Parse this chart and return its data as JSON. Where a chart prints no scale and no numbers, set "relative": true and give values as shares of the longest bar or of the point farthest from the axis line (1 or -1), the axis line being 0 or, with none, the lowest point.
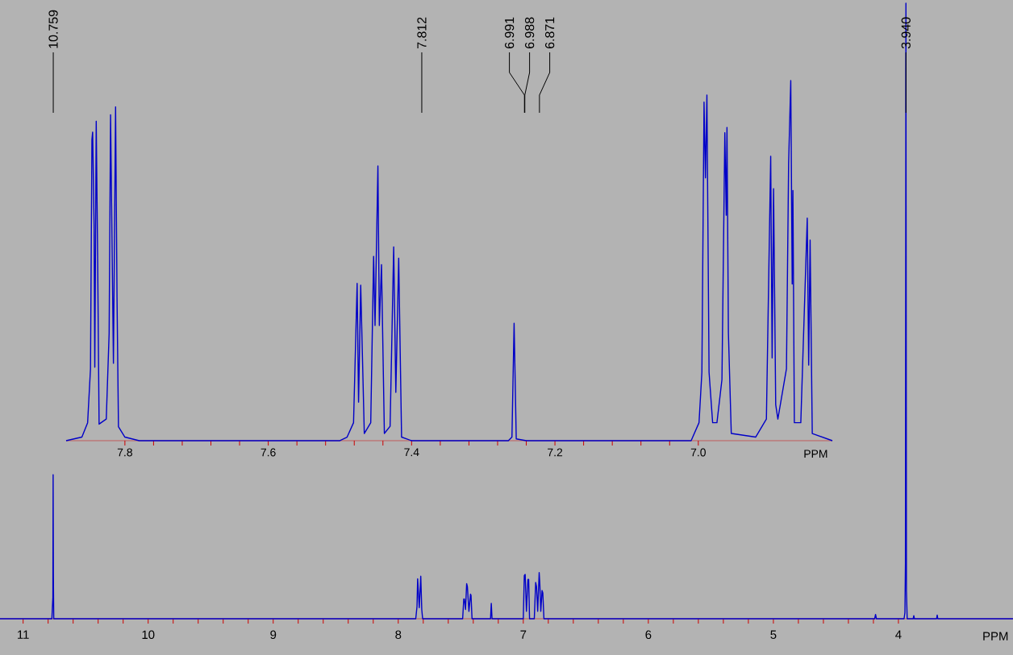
{
  "chart_data": [
    {
      "type": "line",
      "relative": true,
      "xlabel": "PPM",
      "xlim": [
        11.185,
        3.084
      ],
      "xticks": [
        11,
        10,
        9,
        8,
        7,
        6,
        5,
        4
      ],
      "x": [
        11.185,
        10.77,
        10.762,
        10.76,
        10.758,
        10.755,
        7.86,
        7.85,
        7.845,
        7.832,
        7.82,
        7.812,
        7.805,
        7.485,
        7.476,
        7.471,
        7.462,
        7.453,
        7.447,
        7.435,
        7.422,
        7.418,
        7.41,
        7.262,
        7.256,
        7.25,
        7.0,
        6.992,
        6.985,
        6.975,
        6.963,
        6.957,
        6.95,
        6.912,
        6.901,
        6.894,
        6.885,
        6.873,
        6.868,
        6.86,
        6.85,
        6.844,
        6.835,
        4.19,
        4.183,
        4.176,
        3.955,
        3.948,
        3.944,
        3.94,
        3.936,
        3.93,
        3.882,
        3.877,
        3.872,
        3.695,
        3.69,
        3.685,
        3.084
      ],
      "series": [
        {
          "color": "#0000c8",
          "values": [
            0,
            0,
            0.035,
            0.234,
            0.07,
            0,
            0,
            0.02,
            0.065,
            0.018,
            0.069,
            0.015,
            0,
            0,
            0.032,
            0.032,
            0.015,
            0.057,
            0.052,
            0.012,
            0.04,
            0.038,
            0,
            0,
            0.025,
            0,
            0,
            0.07,
            0.072,
            0.012,
            0.064,
            0.064,
            0,
            0,
            0.059,
            0.052,
            0.012,
            0.075,
            0.058,
            0.012,
            0.046,
            0.042,
            0,
            0,
            0.007,
            0,
            0,
            0.01,
            0.09,
            1.0,
            0.045,
            0,
            0,
            0.005,
            0,
            0,
            0.006,
            0,
            0
          ]
        }
      ],
      "annotations": [
        {
          "text": "10.759",
          "x": 10.759
        },
        {
          "text": "7.812",
          "x": 7.812
        },
        {
          "text": "6.991",
          "x": 6.991
        },
        {
          "text": "6.988",
          "x": 6.988
        },
        {
          "text": "6.871",
          "x": 6.871
        },
        {
          "text": "3.940",
          "x": 3.94
        }
      ]
    },
    {
      "type": "line",
      "relative": true,
      "xlabel": "PPM",
      "xlim": [
        7.882,
        6.813
      ],
      "xticks": [
        7.8,
        7.6,
        7.4,
        7.2,
        {
          "value": 7,
          "label": "7.0"
        }
      ],
      "x": [
        7.882,
        7.86,
        7.852,
        7.848,
        7.846,
        7.845,
        7.843,
        7.842,
        7.84,
        7.838,
        7.836,
        7.826,
        7.822,
        7.82,
        7.816,
        7.813,
        7.811,
        7.809,
        7.8,
        7.78,
        7.5,
        7.49,
        7.481,
        7.476,
        7.474,
        7.471,
        7.466,
        7.457,
        7.453,
        7.451,
        7.447,
        7.445,
        7.442,
        7.438,
        7.43,
        7.425,
        7.422,
        7.418,
        7.414,
        7.4,
        7.265,
        7.26,
        7.257,
        7.254,
        7.24,
        7.01,
        6.999,
        6.995,
        6.992,
        6.99,
        6.988,
        6.985,
        6.98,
        6.974,
        6.967,
        6.963,
        6.961,
        6.96,
        6.958,
        6.954,
        6.92,
        6.905,
        6.899,
        6.897,
        6.895,
        6.892,
        6.889,
        6.877,
        6.874,
        6.871,
        6.869,
        6.868,
        6.866,
        6.857,
        6.848,
        6.846,
        6.844,
        6.841,
        6.813
      ],
      "series": [
        {
          "color": "#0000c8",
          "values": [
            0,
            0.01,
            0.05,
            0.2,
            0.836,
            0.857,
            0.6,
            0.204,
            0.887,
            0.5,
            0.046,
            0.06,
            0.298,
            0.905,
            0.215,
            0.927,
            0.4,
            0.039,
            0.01,
            0,
            0,
            0.01,
            0.05,
            0.437,
            0.107,
            0.432,
            0.02,
            0.05,
            0.512,
            0.32,
            0.763,
            0.32,
            0.489,
            0.02,
            0.04,
            0.538,
            0.134,
            0.507,
            0.01,
            0,
            0,
            0.01,
            0.326,
            0.005,
            0,
            0,
            0.05,
            0.19,
            0.94,
            0.73,
            0.96,
            0.19,
            0.05,
            0.05,
            0.17,
            0.855,
            0.626,
            0.87,
            0.3,
            0.02,
            0.01,
            0.06,
            0.79,
            0.23,
            0.7,
            0.1,
            0.06,
            0.2,
            0.77,
            1.0,
            0.435,
            0.695,
            0.05,
            0.05,
            0.618,
            0.21,
            0.557,
            0.02,
            0
          ]
        }
      ]
    }
  ]
}
